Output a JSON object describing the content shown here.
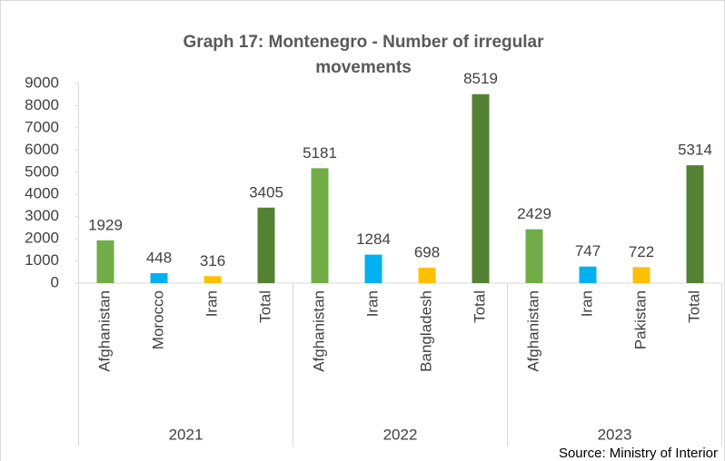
{
  "chart_data": {
    "type": "bar",
    "title": [
      "Graph 17: Montenegro - Number of irregular",
      "movements"
    ],
    "source": "Source: Ministry of Interior",
    "ylim": [
      0,
      9000
    ],
    "yticks": [
      0,
      1000,
      2000,
      3000,
      4000,
      5000,
      6000,
      7000,
      8000,
      9000
    ],
    "groups": [
      {
        "name": "2021",
        "categories": [
          "Afghanistan",
          "Morocco",
          "Iran",
          "Total"
        ],
        "values": [
          1929,
          448,
          316,
          3405
        ],
        "colors": [
          "#70ad47",
          "#00b0f0",
          "#ffc000",
          "#548235"
        ]
      },
      {
        "name": "2022",
        "categories": [
          "Afghanistan",
          "Iran",
          "Bangladesh",
          "Total"
        ],
        "values": [
          5181,
          1284,
          698,
          8519
        ],
        "colors": [
          "#70ad47",
          "#00b0f0",
          "#ffc000",
          "#548235"
        ]
      },
      {
        "name": "2023",
        "categories": [
          "Afghanistan",
          "Iran",
          "Pakistan",
          "Total"
        ],
        "values": [
          2429,
          747,
          722,
          5314
        ],
        "colors": [
          "#70ad47",
          "#00b0f0",
          "#ffc000",
          "#548235"
        ]
      }
    ]
  }
}
